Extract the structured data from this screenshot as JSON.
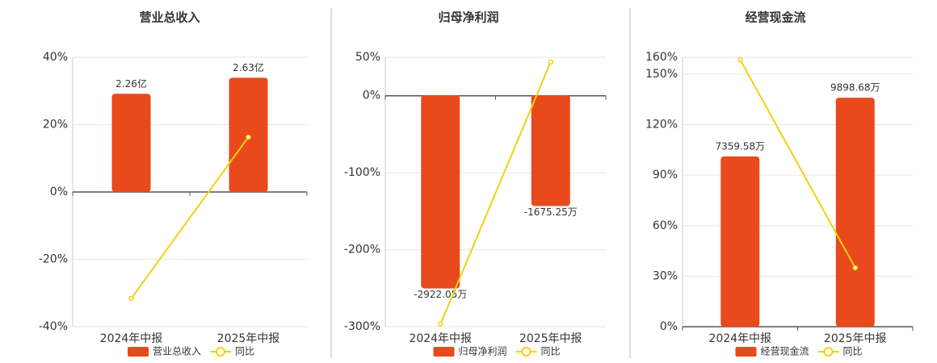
{
  "chart_data": [
    {
      "type": "bar-line",
      "title": "营业总收入",
      "categories": [
        "2024年中报",
        "2025年中报"
      ],
      "ylim": [
        -40,
        40
      ],
      "yticks": [
        {
          "value": -40,
          "label": "-40%"
        },
        {
          "value": -20,
          "label": "-20%"
        },
        {
          "value": 0,
          "label": "0%"
        },
        {
          "value": 20,
          "label": "20%"
        },
        {
          "value": 40,
          "label": "40%"
        }
      ],
      "y2lim": [
        -3.1,
        3.1
      ],
      "grid": true,
      "series": [
        {
          "name": "营业总收入",
          "kind": "bar",
          "axis": "y2",
          "color": "#e84a1b",
          "values": [
            2.26,
            2.63
          ],
          "value_labels": [
            "2.26亿",
            "2.63亿"
          ]
        },
        {
          "name": "同比",
          "kind": "line",
          "color": "#f2d10f",
          "values": [
            -31.6,
            16.3
          ]
        }
      ]
    },
    {
      "type": "bar-line",
      "title": "归母净利润",
      "categories": [
        "2024年中报",
        "2025年中报"
      ],
      "ylim": [
        -300,
        50
      ],
      "yticks": [
        {
          "value": -300,
          "label": "-300%"
        },
        {
          "value": -200,
          "label": "-200%"
        },
        {
          "value": -100,
          "label": "-100%"
        },
        {
          "value": 0,
          "label": "0%"
        },
        {
          "value": 50,
          "label": "50%"
        }
      ],
      "y2lim": [
        -3500,
        573
      ],
      "grid": true,
      "series": [
        {
          "name": "归母净利润",
          "kind": "bar",
          "axis": "y2",
          "color": "#e84a1b",
          "values": [
            -2922.05,
            -1675.25
          ],
          "value_labels": [
            "-2922.05万",
            "-1675.25万"
          ]
        },
        {
          "name": "同比",
          "kind": "line",
          "color": "#f2d10f",
          "values": [
            -296.6,
            44
          ]
        }
      ]
    },
    {
      "type": "bar-line",
      "title": "经营现金流",
      "categories": [
        "2024年中报",
        "2025年中报"
      ],
      "ylim": [
        0,
        160
      ],
      "yticks": [
        {
          "value": 0,
          "label": "0%"
        },
        {
          "value": 30,
          "label": "30%"
        },
        {
          "value": 60,
          "label": "60%"
        },
        {
          "value": 90,
          "label": "90%"
        },
        {
          "value": 120,
          "label": "120%"
        },
        {
          "value": 150,
          "label": "150%"
        },
        {
          "value": 160,
          "label": "160%"
        }
      ],
      "y2lim": [
        0,
        11646
      ],
      "grid": true,
      "series": [
        {
          "name": "经营现金流",
          "kind": "bar",
          "axis": "y2",
          "color": "#e84a1b",
          "values": [
            7359.58,
            9898.68
          ],
          "value_labels": [
            "7359.58万",
            "9898.68万"
          ]
        },
        {
          "name": "同比",
          "kind": "line",
          "color": "#f2d10f",
          "values": [
            158.6,
            35
          ]
        }
      ]
    }
  ]
}
